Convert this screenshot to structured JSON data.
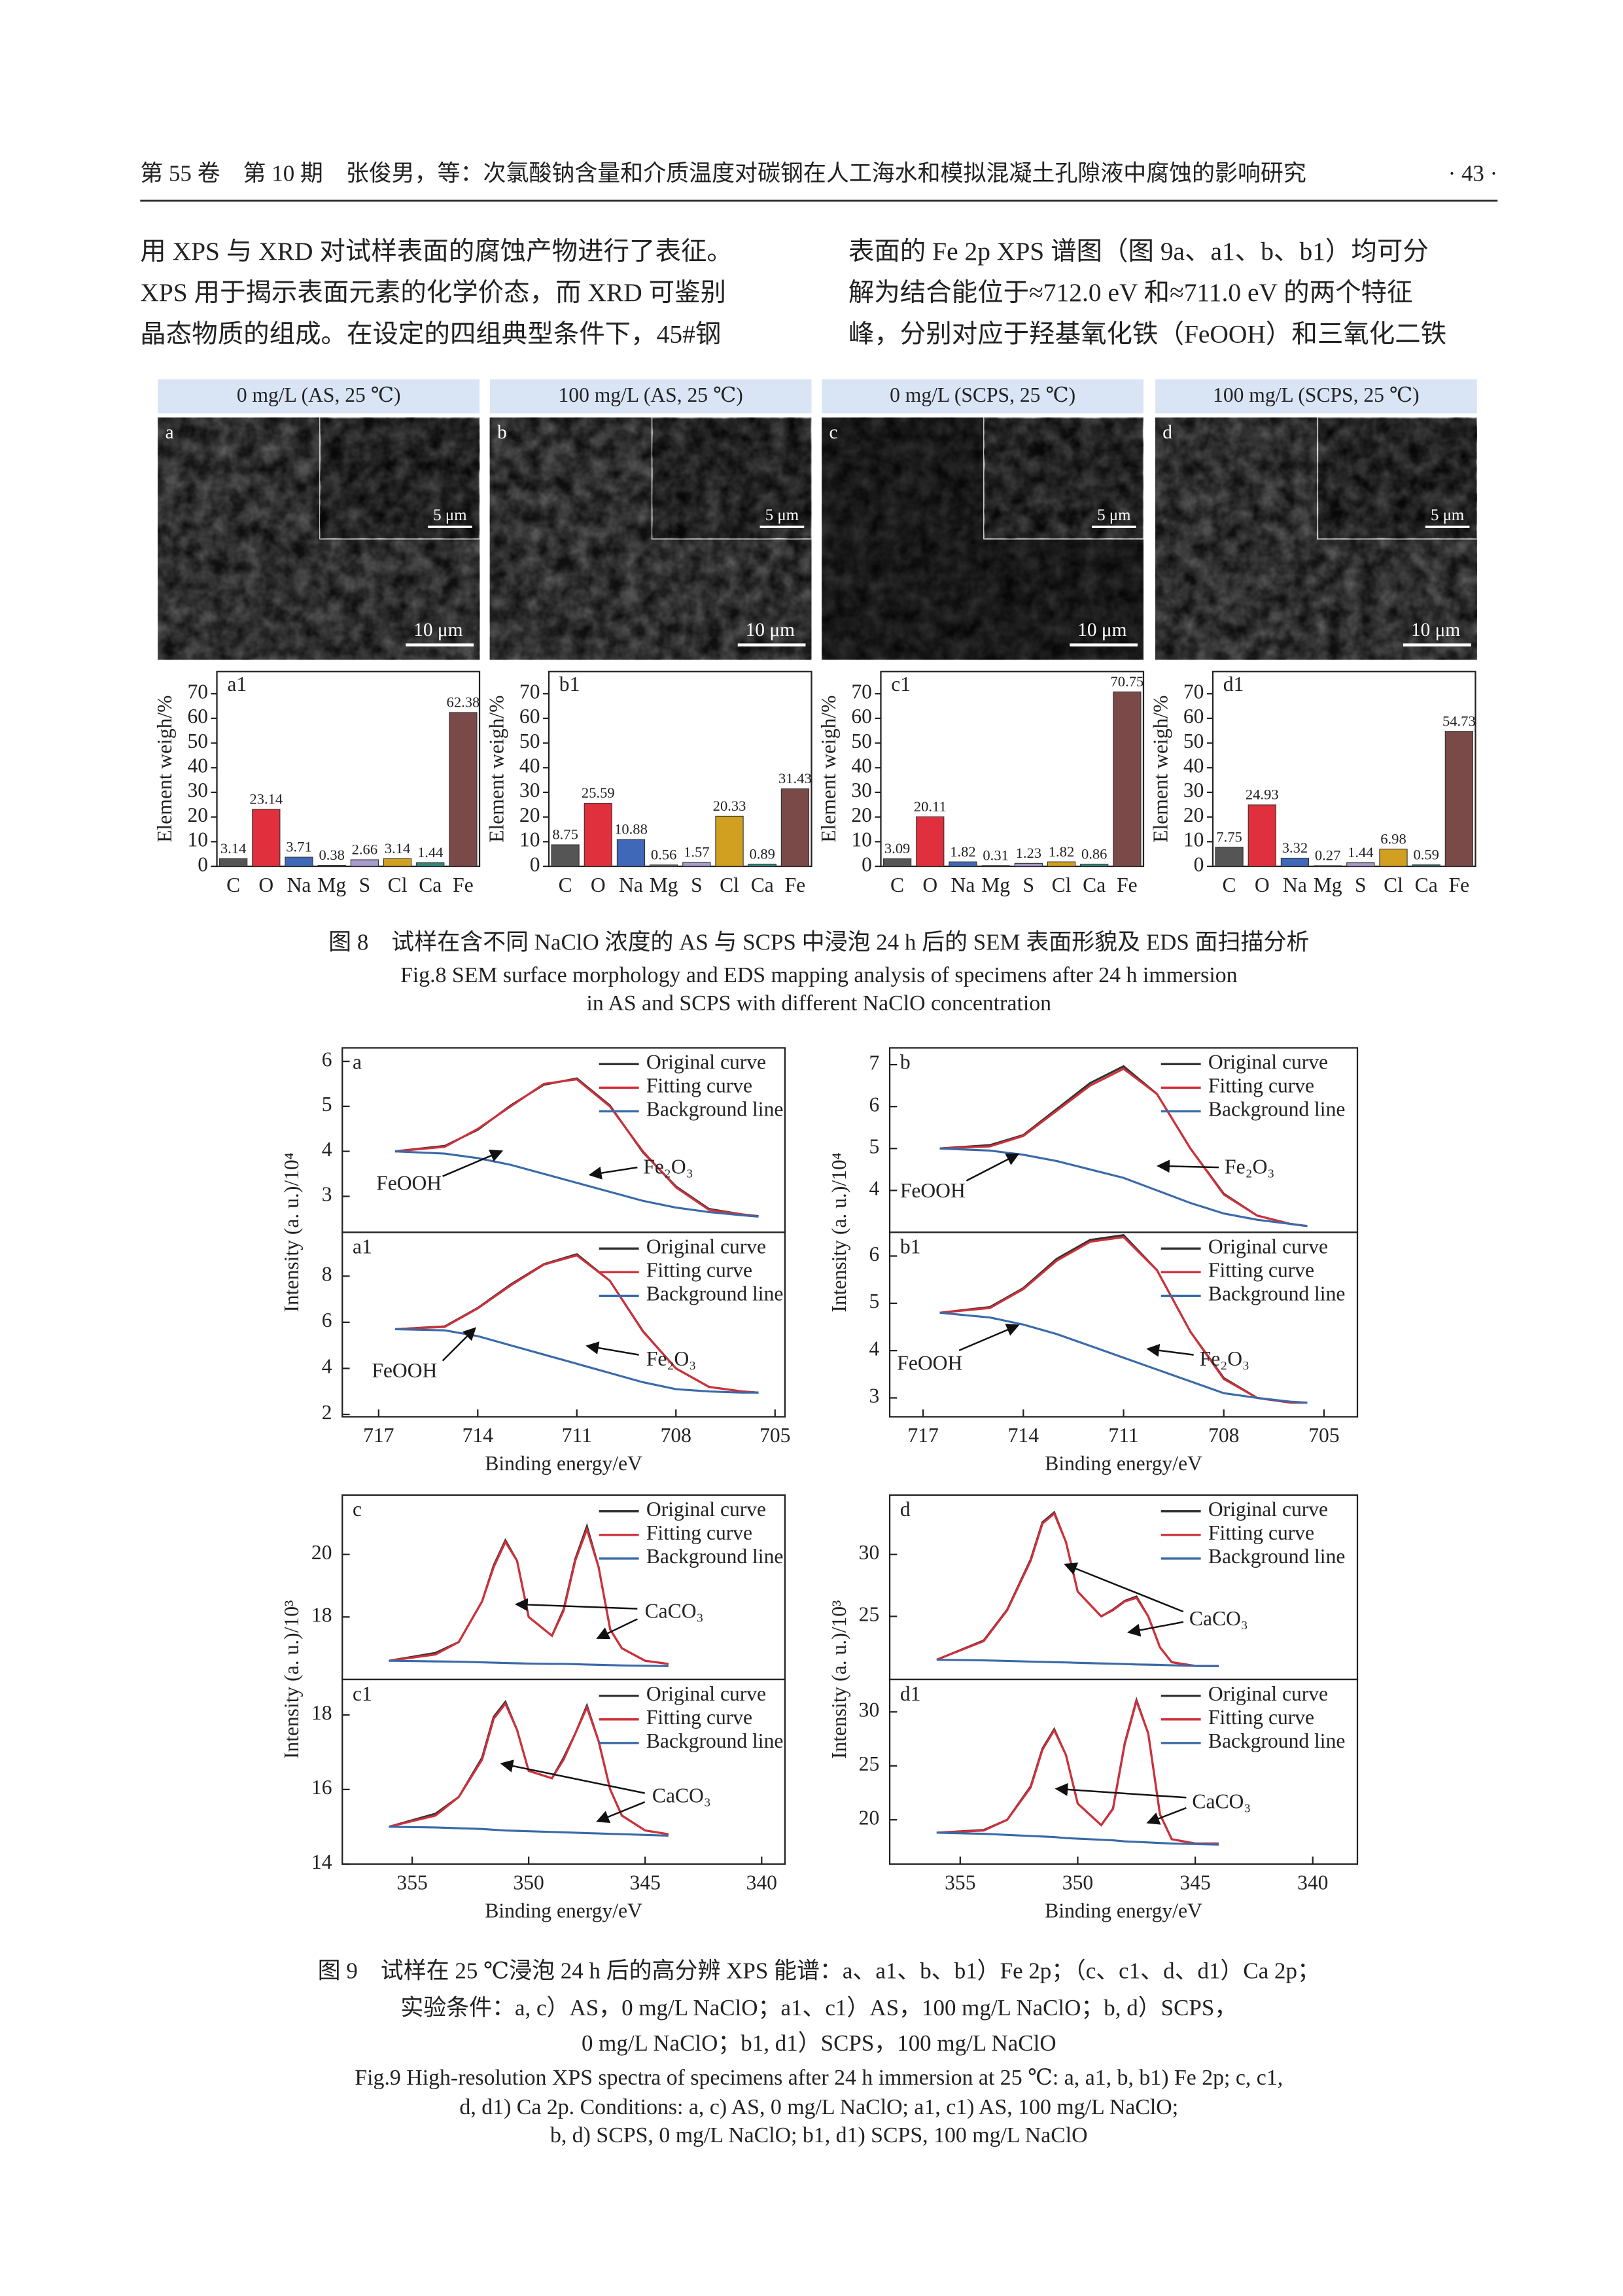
{
  "header": {
    "left": "第 55 卷　第 10 期　张俊男，等：次氯酸钠含量和介质温度对碳钢在人工海水和模拟混凝土孔隙液中腐蚀的影响研究",
    "page": "· 43 ·"
  },
  "body": {
    "left": [
      "用 XPS 与 XRD 对试样表面的腐蚀产物进行了表征。",
      "XPS 用于揭示表面元素的化学价态，而 XRD 可鉴别",
      "晶态物质的组成。在设定的四组典型条件下，45#钢"
    ],
    "right": [
      "表面的 Fe 2p XPS 谱图（图 9a、a1、b、b1）均可分",
      "解为结合能位于≈712.0 eV 和≈711.0 eV 的两个特征",
      "峰，分别对应于羟基氧化铁（FeOOH）和三氧化二铁"
    ]
  },
  "figure8": {
    "panels": [
      {
        "title": "0 mg/L (AS, 25 ℃)",
        "label": "a",
        "inset_scale": "5 μm",
        "scale": "10 μm"
      },
      {
        "title": "100 mg/L (AS, 25 ℃)",
        "label": "b",
        "inset_scale": "5 μm",
        "scale": "10 μm"
      },
      {
        "title": "0 mg/L (SCPS, 25 ℃)",
        "label": "c",
        "inset_scale": "5 μm",
        "scale": "10 μm"
      },
      {
        "title": "100 mg/L (SCPS, 25 ℃)",
        "label": "d",
        "inset_scale": "5 μm",
        "scale": "10 μm"
      }
    ],
    "caption_cn": "图 8　试样在含不同 NaClO 浓度的 AS 与 SCPS 中浸泡 24 h 后的 SEM 表面形貌及 EDS 面扫描分析",
    "caption_en": [
      "Fig.8 SEM surface morphology and EDS mapping analysis of specimens after 24 h immersion",
      "in AS and SCPS with different NaClO concentration"
    ]
  },
  "chart_data": [
    {
      "type": "bar",
      "label": "a1",
      "ylabel": "Element weigh/%",
      "categories": [
        "C",
        "O",
        "Na",
        "Mg",
        "S",
        "Cl",
        "Ca",
        "Fe"
      ],
      "values": [
        3.14,
        23.14,
        3.71,
        0.38,
        2.66,
        3.14,
        1.44,
        62.38
      ],
      "colors": [
        "#555555",
        "#e0303e",
        "#4068b8",
        "#8a8a8a",
        "#a89ccc",
        "#d2a020",
        "#2f8a80",
        "#7a4a48"
      ],
      "ylim": [
        0,
        79
      ],
      "yticks": [
        0,
        10,
        20,
        30,
        40,
        50,
        60,
        70
      ]
    },
    {
      "type": "bar",
      "label": "b1",
      "ylabel": "Element weigh/%",
      "categories": [
        "C",
        "O",
        "Na",
        "Mg",
        "S",
        "Cl",
        "Ca",
        "Fe"
      ],
      "values": [
        8.75,
        25.59,
        10.88,
        0.56,
        1.57,
        20.33,
        0.89,
        31.43
      ],
      "colors": [
        "#555555",
        "#e0303e",
        "#4068b8",
        "#8a8a8a",
        "#a89ccc",
        "#d2a020",
        "#2f8a80",
        "#7a4a48"
      ],
      "ylim": [
        0,
        79
      ],
      "yticks": [
        0,
        10,
        20,
        30,
        40,
        50,
        60,
        70
      ]
    },
    {
      "type": "bar",
      "label": "c1",
      "ylabel": "Element weigh/%",
      "categories": [
        "C",
        "O",
        "Na",
        "Mg",
        "S",
        "Cl",
        "Ca",
        "Fe"
      ],
      "values": [
        3.09,
        20.11,
        1.82,
        0.31,
        1.23,
        1.82,
        0.86,
        70.75
      ],
      "colors": [
        "#555555",
        "#e0303e",
        "#4068b8",
        "#8a8a8a",
        "#a89ccc",
        "#d2a020",
        "#2f8a80",
        "#7a4a48"
      ],
      "ylim": [
        0,
        79
      ],
      "yticks": [
        0,
        10,
        20,
        30,
        40,
        50,
        60,
        70
      ]
    },
    {
      "type": "bar",
      "label": "d1",
      "ylabel": "Element weigh/%",
      "categories": [
        "C",
        "O",
        "Na",
        "Mg",
        "S",
        "Cl",
        "Ca",
        "Fe"
      ],
      "values": [
        7.75,
        24.93,
        3.32,
        0.27,
        1.44,
        6.98,
        0.59,
        54.73
      ],
      "colors": [
        "#555555",
        "#e0303e",
        "#4068b8",
        "#8a8a8a",
        "#a89ccc",
        "#d2a020",
        "#2f8a80",
        "#7a4a48"
      ],
      "ylim": [
        0,
        79
      ],
      "yticks": [
        0,
        10,
        20,
        30,
        40,
        50,
        60,
        70
      ]
    },
    {
      "type": "line",
      "label": "a",
      "ylabel": "Intensity (a. u.)/10⁴",
      "annotations": [
        "FeOOH",
        "Fe₂O₃"
      ],
      "x": [
        716.5,
        715,
        714,
        713,
        712,
        711,
        710,
        709,
        708,
        707,
        706,
        705.5
      ],
      "xlim": [
        718.1,
        704.7
      ],
      "ylim": [
        2.2,
        6.3
      ],
      "yticks": [
        3,
        4,
        5,
        6
      ],
      "series": [
        {
          "name": "Original curve",
          "color": "#333333",
          "values": [
            4.0,
            4.12,
            4.48,
            5.02,
            5.48,
            5.62,
            5.02,
            3.98,
            3.22,
            2.72,
            2.6,
            2.56
          ]
        },
        {
          "name": "Fitting curve",
          "color": "#d0303a",
          "values": [
            4.0,
            4.1,
            4.5,
            5.0,
            5.5,
            5.6,
            5.0,
            4.0,
            3.2,
            2.7,
            2.6,
            2.55
          ]
        },
        {
          "name": "Background line",
          "color": "#3a6aa8",
          "values": [
            4.0,
            3.95,
            3.85,
            3.7,
            3.5,
            3.3,
            3.1,
            2.9,
            2.75,
            2.65,
            2.58,
            2.55
          ]
        }
      ]
    },
    {
      "type": "line",
      "label": "a1",
      "xlabel": "Binding energy/eV",
      "annotations": [
        "FeOOH",
        "Fe₂O₃"
      ],
      "x": [
        716.5,
        715,
        714,
        713,
        712,
        711,
        710,
        709,
        708,
        707,
        706,
        705.5
      ],
      "xlim": [
        718.1,
        704.7
      ],
      "ylim": [
        1.9,
        9.9
      ],
      "yticks": [
        2,
        4,
        6,
        8
      ],
      "xticks": [
        717,
        714,
        711,
        708,
        705
      ],
      "series": [
        {
          "name": "Original curve",
          "color": "#333333",
          "values": [
            5.7,
            5.82,
            6.62,
            7.64,
            8.52,
            8.95,
            7.8,
            5.62,
            4.0,
            3.2,
            3.0,
            2.95
          ]
        },
        {
          "name": "Fitting curve",
          "color": "#d0303a",
          "values": [
            5.7,
            5.8,
            6.6,
            7.6,
            8.5,
            8.9,
            7.8,
            5.6,
            4.0,
            3.2,
            3.0,
            2.95
          ]
        },
        {
          "name": "Background line",
          "color": "#3a6aa8",
          "values": [
            5.7,
            5.65,
            5.4,
            5.0,
            4.6,
            4.2,
            3.8,
            3.4,
            3.1,
            3.0,
            2.95,
            2.95
          ]
        }
      ]
    },
    {
      "type": "line",
      "label": "b",
      "ylabel": "Intensity (a. u.)/10⁴",
      "annotations": [
        "FeOOH",
        "Fe₂O₃"
      ],
      "x": [
        716.5,
        715,
        714,
        713,
        712,
        711,
        710,
        709,
        708,
        707,
        706,
        705.5
      ],
      "xlim": [
        718,
        704
      ],
      "ylim": [
        3,
        7.4
      ],
      "yticks": [
        4,
        5,
        6,
        7
      ],
      "series": [
        {
          "name": "Original curve",
          "color": "#333333",
          "values": [
            5.0,
            5.08,
            5.32,
            5.94,
            6.56,
            6.96,
            6.3,
            5.0,
            3.92,
            3.4,
            3.2,
            3.15
          ]
        },
        {
          "name": "Fitting curve",
          "color": "#d0303a",
          "values": [
            5.0,
            5.05,
            5.3,
            5.9,
            6.5,
            6.9,
            6.3,
            5.0,
            3.9,
            3.4,
            3.2,
            3.15
          ]
        },
        {
          "name": "Background line",
          "color": "#3a6aa8",
          "values": [
            5.0,
            4.95,
            4.85,
            4.7,
            4.5,
            4.3,
            4.0,
            3.7,
            3.45,
            3.3,
            3.2,
            3.15
          ]
        }
      ]
    },
    {
      "type": "line",
      "label": "b1",
      "xlabel": "Binding energy/eV",
      "annotations": [
        "FeOOH",
        "Fe₂O₃"
      ],
      "x": [
        716.5,
        715,
        714,
        713,
        712,
        711,
        710,
        709,
        708,
        707,
        706,
        705.5
      ],
      "xlim": [
        718,
        704
      ],
      "ylim": [
        2.6,
        6.5
      ],
      "yticks": [
        3,
        4,
        5,
        6
      ],
      "xticks": [
        717,
        714,
        711,
        708,
        705
      ],
      "series": [
        {
          "name": "Original curve",
          "color": "#333333",
          "values": [
            4.8,
            4.92,
            5.32,
            5.94,
            6.34,
            6.44,
            5.7,
            4.4,
            3.42,
            3.0,
            2.9,
            2.9
          ]
        },
        {
          "name": "Fitting curve",
          "color": "#d0303a",
          "values": [
            4.8,
            4.9,
            5.3,
            5.9,
            6.3,
            6.4,
            5.7,
            4.4,
            3.4,
            3.0,
            2.9,
            2.9
          ]
        },
        {
          "name": "Background line",
          "color": "#3a6aa8",
          "values": [
            4.8,
            4.7,
            4.55,
            4.35,
            4.1,
            3.85,
            3.6,
            3.35,
            3.1,
            3.0,
            2.92,
            2.9
          ]
        }
      ]
    },
    {
      "type": "line",
      "label": "c",
      "ylabel": "Intensity (a. u.)/10³",
      "annotations": [
        "CaCO₃"
      ],
      "x": [
        356,
        354,
        353,
        352,
        351.5,
        351,
        350.5,
        350,
        349,
        348.5,
        348,
        347.5,
        347,
        346.5,
        346,
        345,
        344
      ],
      "xlim": [
        358,
        339
      ],
      "ylim": [
        16,
        21.9
      ],
      "yticks": [
        18,
        20
      ],
      "series": [
        {
          "name": "Original curve",
          "color": "#333333",
          "values": [
            16.6,
            16.85,
            17.2,
            18.5,
            19.65,
            20.45,
            19.8,
            18.0,
            17.4,
            18.25,
            19.85,
            20.9,
            19.6,
            17.6,
            17.0,
            16.6,
            16.5
          ]
        },
        {
          "name": "Fitting curve",
          "color": "#d0303a",
          "values": [
            16.6,
            16.8,
            17.2,
            18.5,
            19.6,
            20.4,
            19.8,
            18.0,
            17.4,
            18.2,
            19.8,
            20.8,
            19.6,
            17.6,
            17.0,
            16.6,
            16.5
          ]
        },
        {
          "name": "Background line",
          "color": "#3a6aa8",
          "values": [
            16.6,
            16.58,
            16.57,
            16.55,
            16.54,
            16.53,
            16.52,
            16.51,
            16.5,
            16.5,
            16.49,
            16.48,
            16.47,
            16.46,
            16.45,
            16.44,
            16.43
          ]
        }
      ]
    },
    {
      "type": "line",
      "label": "c1",
      "xlabel": "Binding energy/eV",
      "annotations": [
        "CaCO₃"
      ],
      "x": [
        356,
        354,
        353,
        352,
        351.5,
        351,
        350.5,
        350,
        349,
        348.5,
        348,
        347.5,
        347,
        346.5,
        346,
        345,
        344
      ],
      "xlim": [
        358,
        339
      ],
      "ylim": [
        14,
        18.95
      ],
      "yticks": [
        14,
        16,
        18
      ],
      "xticks": [
        355,
        350,
        345,
        340
      ],
      "series": [
        {
          "name": "Original curve",
          "color": "#333333",
          "values": [
            15.0,
            15.35,
            15.8,
            16.85,
            17.95,
            18.35,
            17.6,
            16.5,
            16.3,
            16.85,
            17.5,
            18.25,
            17.3,
            16.0,
            15.3,
            14.9,
            14.8
          ]
        },
        {
          "name": "Fitting curve",
          "color": "#d0303a",
          "values": [
            15.0,
            15.3,
            15.8,
            16.8,
            17.9,
            18.3,
            17.6,
            16.5,
            16.3,
            16.8,
            17.5,
            18.2,
            17.3,
            16.0,
            15.3,
            14.9,
            14.8
          ]
        },
        {
          "name": "Background line",
          "color": "#3a6aa8",
          "values": [
            15.0,
            14.98,
            14.96,
            14.94,
            14.92,
            14.9,
            14.89,
            14.88,
            14.86,
            14.85,
            14.84,
            14.83,
            14.82,
            14.81,
            14.8,
            14.78,
            14.76
          ]
        }
      ]
    },
    {
      "type": "line",
      "label": "d",
      "ylabel": "Intensity (a. u.)/10³",
      "annotations": [
        "CaCO₃"
      ],
      "x": [
        356,
        354,
        353,
        352,
        351.5,
        351,
        350.5,
        350,
        349,
        348.5,
        348,
        347.5,
        347,
        346.5,
        346,
        345,
        344
      ],
      "xlim": [
        358,
        338.1
      ],
      "ylim": [
        19.9,
        34.8
      ],
      "yticks": [
        25,
        30
      ],
      "series": [
        {
          "name": "Original curve",
          "color": "#333333",
          "values": [
            21.5,
            23.05,
            25.55,
            29.6,
            32.6,
            33.4,
            31.0,
            27.0,
            25.0,
            25.55,
            26.25,
            26.6,
            25.0,
            22.5,
            21.3,
            21.0,
            21.0
          ]
        },
        {
          "name": "Fitting curve",
          "color": "#d0303a",
          "values": [
            21.5,
            23.0,
            25.5,
            29.5,
            32.5,
            33.3,
            31.0,
            27.0,
            25.0,
            25.5,
            26.2,
            26.5,
            25.0,
            22.5,
            21.3,
            21.0,
            21.0
          ]
        },
        {
          "name": "Background line",
          "color": "#3a6aa8",
          "values": [
            21.5,
            21.45,
            21.4,
            21.35,
            21.33,
            21.3,
            21.28,
            21.25,
            21.2,
            21.18,
            21.15,
            21.12,
            21.1,
            21.08,
            21.05,
            21.0,
            20.98
          ]
        }
      ]
    },
    {
      "type": "line",
      "label": "d1",
      "xlabel": "Binding energy/eV",
      "annotations": [
        "CaCO₃"
      ],
      "x": [
        356,
        354,
        353,
        352,
        351.5,
        351,
        350.5,
        350,
        349,
        348.5,
        348,
        347.5,
        347,
        346.5,
        346,
        345,
        344
      ],
      "xlim": [
        358,
        338.1
      ],
      "ylim": [
        15.9,
        33
      ],
      "yticks": [
        20,
        25,
        30
      ],
      "xticks": [
        355,
        350,
        345,
        340
      ],
      "series": [
        {
          "name": "Original curve",
          "color": "#333333",
          "values": [
            18.8,
            19.05,
            20.0,
            23.1,
            26.6,
            28.4,
            26.0,
            21.5,
            19.5,
            21.05,
            27.1,
            31.1,
            28.0,
            20.5,
            18.2,
            17.8,
            17.8
          ]
        },
        {
          "name": "Fitting curve",
          "color": "#d0303a",
          "values": [
            18.8,
            19.0,
            20.0,
            23.0,
            26.5,
            28.3,
            26.0,
            21.5,
            19.5,
            21.0,
            27.0,
            31.0,
            28.0,
            20.5,
            18.2,
            17.8,
            17.8
          ]
        },
        {
          "name": "Background line",
          "color": "#3a6aa8",
          "values": [
            18.8,
            18.7,
            18.6,
            18.5,
            18.45,
            18.4,
            18.3,
            18.25,
            18.15,
            18.1,
            18.0,
            17.95,
            17.9,
            17.85,
            17.8,
            17.75,
            17.7
          ]
        }
      ]
    }
  ],
  "figure9": {
    "caption_cn": [
      "图 9　试样在 25 ℃浸泡 24 h 后的高分辨 XPS 能谱：a、a1、b、b1）Fe 2p；（c、c1、d、d1）Ca 2p；",
      "实验条件：a, c）AS，0 mg/L NaClO；a1、c1）AS，100 mg/L NaClO；b, d）SCPS，",
      "0 mg/L NaClO；b1, d1）SCPS，100 mg/L NaClO"
    ],
    "caption_en": [
      "Fig.9 High-resolution XPS spectra of specimens after 24 h immersion at 25 ℃: a, a1, b, b1) Fe 2p; c, c1,",
      "d, d1) Ca 2p. Conditions: a, c) AS, 0 mg/L NaClO; a1, c1) AS, 100 mg/L NaClO;",
      "b, d) SCPS, 0 mg/L NaClO; b1, d1) SCPS, 100 mg/L NaClO"
    ]
  }
}
